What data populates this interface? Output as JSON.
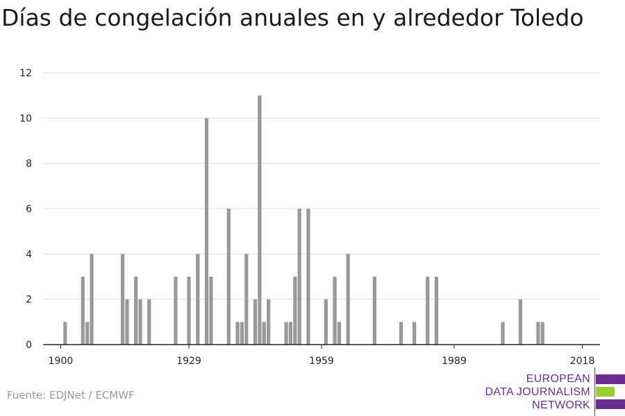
{
  "title": "Días de congelación anuales en y alrededor Toledo",
  "source": "Fuente: EDJNet / ECMWF",
  "logo": {
    "line1": "EUROPEAN",
    "line2": "DATA JOURNALISM",
    "line3": "NETWORK",
    "colors": {
      "purple": "#6b2c91",
      "green": "#9acd32"
    }
  },
  "colors": {
    "bar": "#999999",
    "grid": "#dddddd",
    "axis": "#222222",
    "tick_text": "#222222"
  },
  "chart_data": {
    "type": "bar",
    "title": "Días de congelación anuales en y alrededor Toledo",
    "xlabel": "",
    "ylabel": "",
    "xlim": [
      1896,
      2022
    ],
    "ylim": [
      0,
      12
    ],
    "x_ticks": [
      1900,
      1929,
      1959,
      1989,
      2018
    ],
    "y_ticks": [
      0,
      2,
      4,
      6,
      8,
      10,
      12
    ],
    "grid": true,
    "x": [
      1901,
      1905,
      1906,
      1907,
      1914,
      1915,
      1917,
      1918,
      1920,
      1926,
      1929,
      1931,
      1933,
      1934,
      1938,
      1940,
      1941,
      1942,
      1944,
      1945,
      1946,
      1947,
      1951,
      1952,
      1953,
      1954,
      1956,
      1960,
      1962,
      1963,
      1965,
      1971,
      1977,
      1980,
      1983,
      1985,
      2000,
      2004,
      2008,
      2009
    ],
    "values": [
      1,
      3,
      1,
      4,
      4,
      2,
      3,
      2,
      2,
      3,
      3,
      4,
      10,
      3,
      6,
      1,
      1,
      4,
      2,
      11,
      1,
      2,
      1,
      1,
      3,
      6,
      6,
      2,
      3,
      1,
      4,
      3,
      1,
      1,
      3,
      3,
      1,
      2,
      1,
      1
    ]
  }
}
